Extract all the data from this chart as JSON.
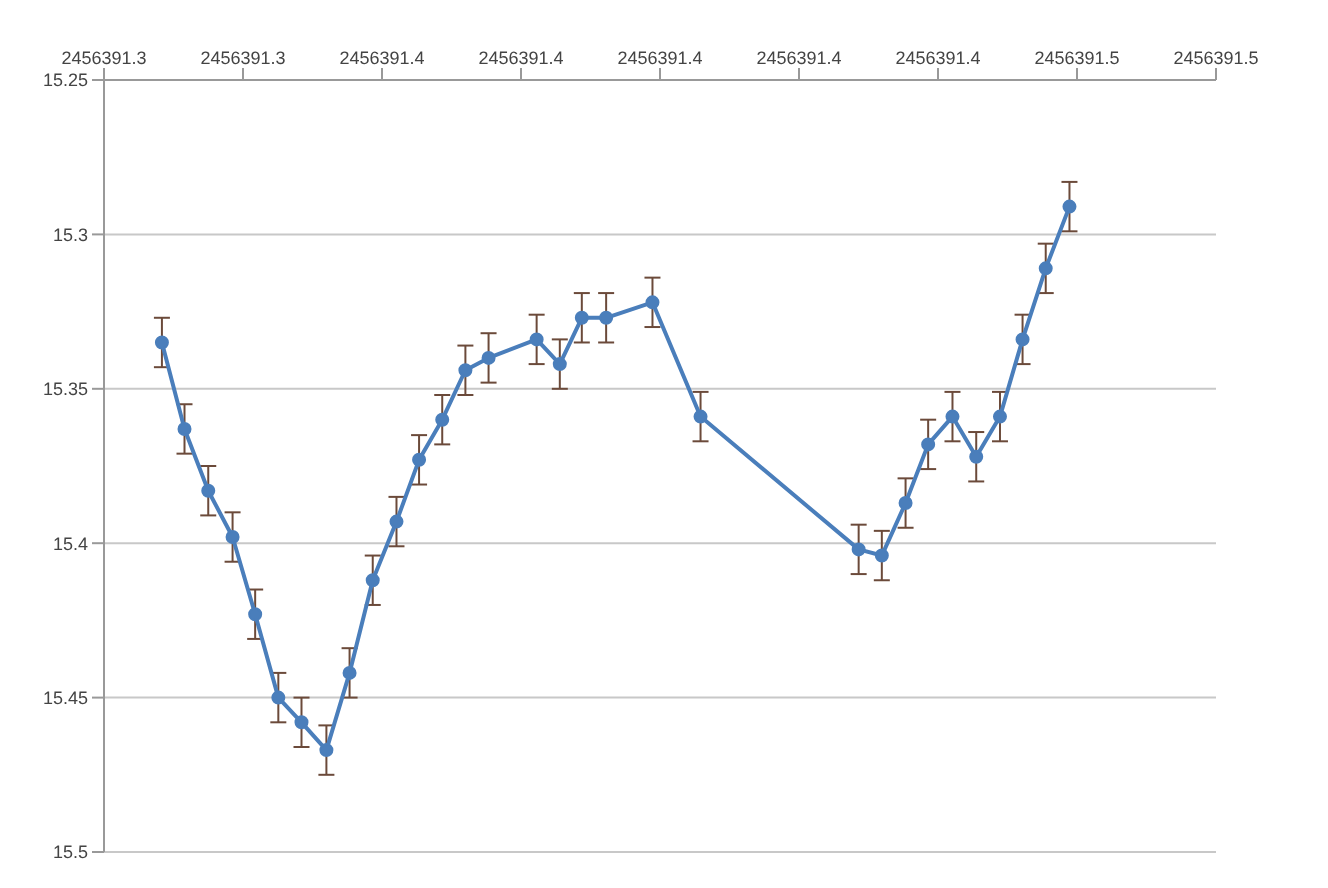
{
  "chart_data": {
    "type": "line",
    "x": [
      2456391.314,
      2456391.3179,
      2456391.322,
      2456391.3262,
      2456391.3301,
      2456391.3341,
      2456391.3381,
      2456391.3424,
      2456391.3464,
      2456391.3504,
      2456391.3545,
      2456391.3584,
      2456391.3624,
      2456391.3664,
      2456391.3704,
      2456391.3787,
      2456391.3827,
      2456391.3865,
      2456391.3907,
      2456391.3987,
      2456391.407,
      2456391.4343,
      2456391.4383,
      2456391.4424,
      2456391.4463,
      2456391.4505,
      2456391.4546,
      2456391.4587,
      2456391.4626,
      2456391.4666,
      2456391.4707
    ],
    "series": [
      {
        "color": "#4a7ebb",
        "values": [
          15.335,
          15.363,
          15.383,
          15.398,
          15.423,
          15.45,
          15.458,
          15.467,
          15.442,
          15.412,
          15.393,
          15.373,
          15.36,
          15.344,
          15.34,
          15.334,
          15.342,
          15.327,
          15.327,
          15.322,
          15.359,
          15.402,
          15.404,
          15.387,
          15.368,
          15.359,
          15.372,
          15.359,
          15.334,
          15.311,
          15.291
        ],
        "errors": [
          0.008,
          0.008,
          0.008,
          0.008,
          0.008,
          0.008,
          0.008,
          0.008,
          0.008,
          0.008,
          0.008,
          0.008,
          0.008,
          0.008,
          0.008,
          0.008,
          0.008,
          0.008,
          0.008,
          0.008,
          0.008,
          0.008,
          0.008,
          0.008,
          0.008,
          0.008,
          0.008,
          0.008,
          0.008,
          0.008,
          0.008
        ]
      }
    ],
    "xlim": [
      2456391.304,
      2456391.496
    ],
    "xticks": [
      {
        "value": 2456391.304,
        "label": "2456391.3"
      },
      {
        "value": 2456391.328,
        "label": "2456391.3"
      },
      {
        "value": 2456391.352,
        "label": "2456391.4"
      },
      {
        "value": 2456391.376,
        "label": "2456391.4"
      },
      {
        "value": 2456391.4,
        "label": "2456391.4"
      },
      {
        "value": 2456391.424,
        "label": "2456391.4"
      },
      {
        "value": 2456391.448,
        "label": "2456391.4"
      },
      {
        "value": 2456391.472,
        "label": "2456391.5"
      },
      {
        "value": 2456391.496,
        "label": "2456391.5"
      }
    ],
    "ylim": [
      15.5,
      15.25
    ],
    "yticks": [
      15.25,
      15.3,
      15.35,
      15.4,
      15.45,
      15.5
    ],
    "grid": "y",
    "marker": "circle",
    "line_style": "solid",
    "legend": false
  }
}
